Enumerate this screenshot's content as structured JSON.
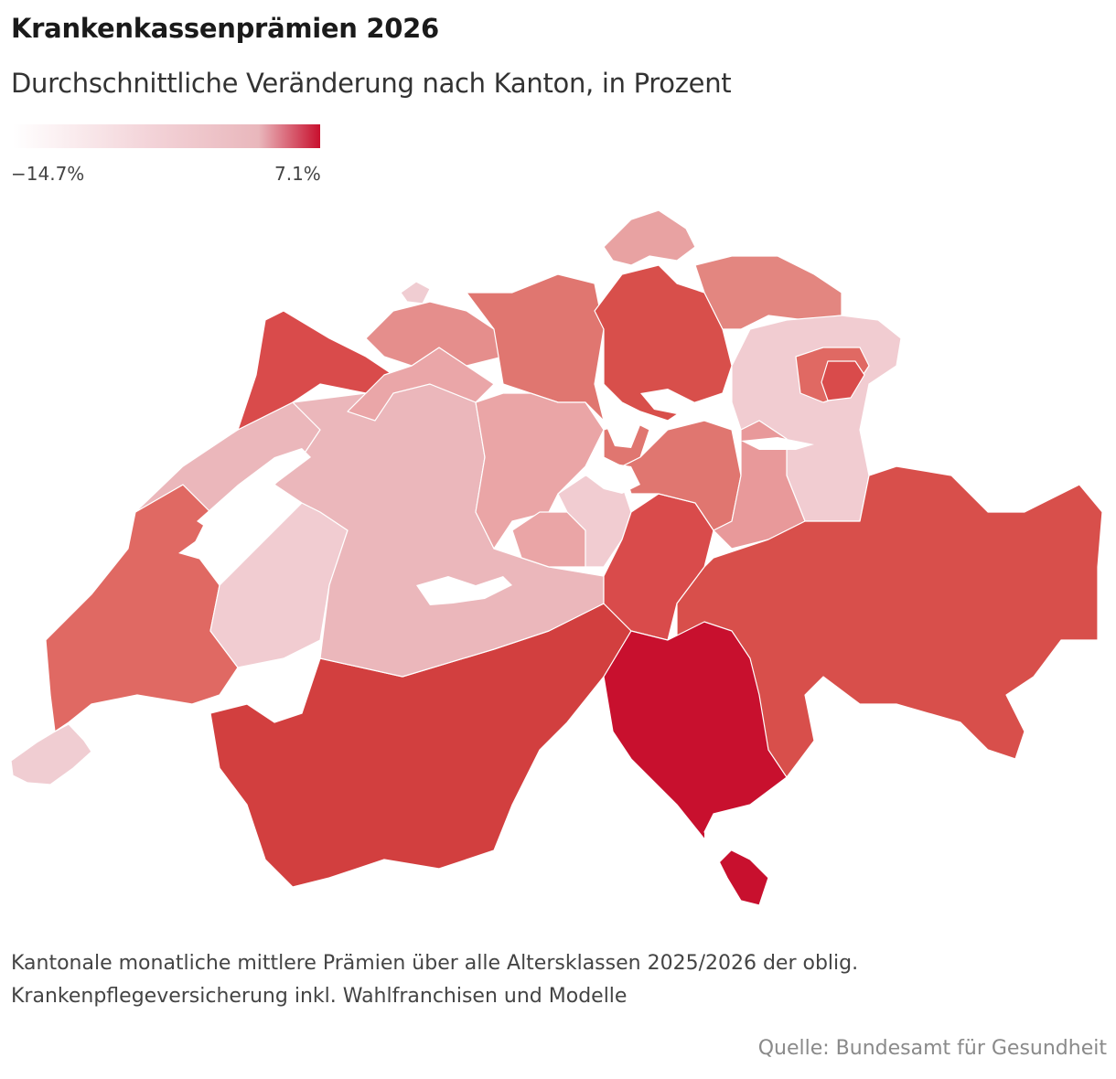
{
  "header": {
    "title": "Krankenkassenprämien 2026",
    "subtitle": "Durchschnittliche Veränderung nach Kanton, in Prozent"
  },
  "legend": {
    "min_label": "−14.7%",
    "max_label": "7.1%",
    "colors": [
      "#ffffff",
      "#f3d3d8",
      "#e9b7bc",
      "#c8102e"
    ]
  },
  "map": {
    "country": "Switzerland",
    "regions": [
      {
        "id": "GE",
        "color": "#f0cdd2"
      },
      {
        "id": "VD",
        "color": "#e06963"
      },
      {
        "id": "VS",
        "color": "#d23f3f"
      },
      {
        "id": "FR",
        "color": "#f1ccd1"
      },
      {
        "id": "NE",
        "color": "#ebb7bb"
      },
      {
        "id": "JU",
        "color": "#d94b4b"
      },
      {
        "id": "BE",
        "color": "#ebb7bb"
      },
      {
        "id": "SO",
        "color": "#eaa6a8"
      },
      {
        "id": "BS",
        "color": "#f0cdd2"
      },
      {
        "id": "BL",
        "color": "#e58e8c"
      },
      {
        "id": "AG",
        "color": "#e07670"
      },
      {
        "id": "LU",
        "color": "#eaa5a6"
      },
      {
        "id": "OW",
        "color": "#eaa5a6"
      },
      {
        "id": "NW",
        "color": "#f1ccd1"
      },
      {
        "id": "UR",
        "color": "#d94b4b"
      },
      {
        "id": "ZG",
        "color": "#e07670"
      },
      {
        "id": "SZ",
        "color": "#e07670"
      },
      {
        "id": "ZH",
        "color": "#d84f4b"
      },
      {
        "id": "SH",
        "color": "#e8a2a2"
      },
      {
        "id": "TG",
        "color": "#e38680"
      },
      {
        "id": "SG",
        "color": "#f1ccd1"
      },
      {
        "id": "AR",
        "color": "#e06963"
      },
      {
        "id": "AI",
        "color": "#d94b4b"
      },
      {
        "id": "GL",
        "color": "#e8999a"
      },
      {
        "id": "GR",
        "color": "#d84f4b"
      },
      {
        "id": "TI",
        "color": "#c8102e"
      }
    ]
  },
  "footer": {
    "note_line1": "Kantonale monatliche mittlere Prämien über alle Altersklassen 2025/2026 der oblig.",
    "note_line2": "Krankenpflegeversicherung inkl. Wahlfranchisen und Modelle",
    "source": "Quelle: Bundesamt für Gesundheit"
  }
}
